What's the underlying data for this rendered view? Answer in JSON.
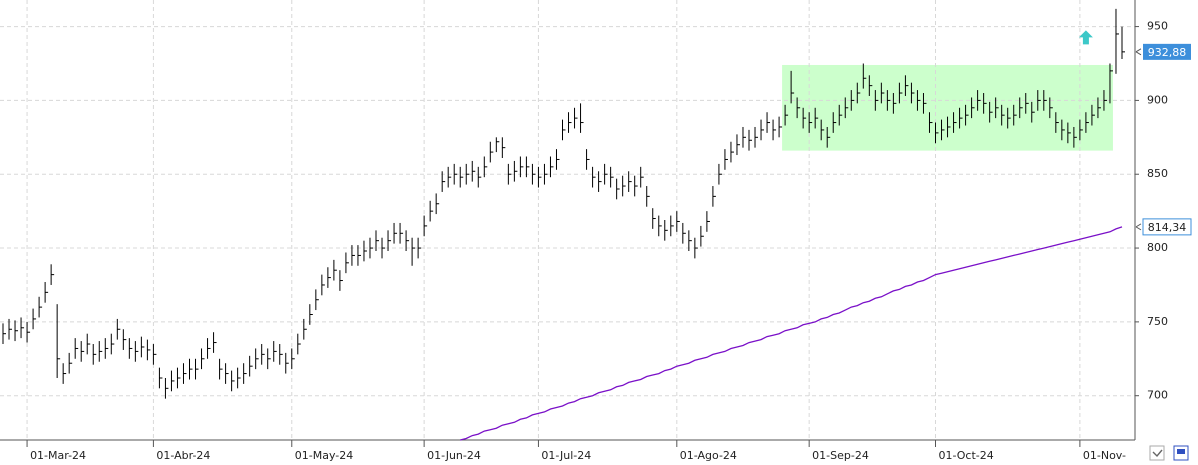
{
  "chart_data": {
    "type": "ohlc",
    "categories": [
      null,
      null,
      null,
      null,
      "01-Mar-24",
      null,
      null,
      null,
      null,
      null,
      null,
      null,
      null,
      null,
      null,
      null,
      null,
      null,
      null,
      null,
      null,
      null,
      null,
      null,
      null,
      "01-Abr-24",
      null,
      null,
      null,
      null,
      null,
      null,
      null,
      null,
      null,
      null,
      null,
      null,
      null,
      null,
      null,
      null,
      null,
      null,
      null,
      null,
      null,
      null,
      "01-May-24",
      null,
      null,
      null,
      null,
      null,
      null,
      null,
      null,
      null,
      null,
      null,
      null,
      null,
      null,
      null,
      null,
      null,
      null,
      null,
      null,
      null,
      "01-Jun-24",
      null,
      null,
      null,
      null,
      null,
      null,
      null,
      null,
      null,
      null,
      null,
      null,
      null,
      null,
      null,
      null,
      null,
      null,
      "01-Jul-24",
      null,
      null,
      null,
      null,
      null,
      null,
      null,
      null,
      null,
      null,
      null,
      null,
      null,
      null,
      null,
      null,
      null,
      null,
      null,
      null,
      null,
      null,
      "01-Ago-24",
      null,
      null,
      null,
      null,
      null,
      null,
      null,
      null,
      null,
      null,
      null,
      null,
      null,
      null,
      null,
      null,
      null,
      null,
      null,
      null,
      null,
      "01-Sep-24",
      null,
      null,
      null,
      null,
      null,
      null,
      null,
      null,
      null,
      null,
      null,
      null,
      null,
      null,
      null,
      null,
      null,
      null,
      null,
      null,
      "01-Oct-24",
      null,
      null,
      null,
      null,
      null,
      null,
      null,
      null,
      null,
      null,
      null,
      null,
      null,
      null,
      null,
      null,
      null,
      null,
      null,
      null,
      null,
      null,
      null,
      "01-Nov-",
      null,
      null,
      null,
      null,
      null,
      null
    ],
    "price": {
      "color": "#000000",
      "label_color": "#3d8fdb",
      "last_label": "932,88",
      "high": [
        749,
        752,
        751,
        753,
        750,
        759,
        767,
        777,
        789,
        762,
        722,
        729,
        739,
        737,
        742,
        735,
        737,
        739,
        742,
        752,
        745,
        739,
        737,
        740,
        738,
        735,
        719,
        712,
        717,
        719,
        722,
        725,
        725,
        732,
        739,
        743,
        725,
        722,
        717,
        719,
        722,
        727,
        732,
        735,
        732,
        737,
        735,
        729,
        732,
        742,
        752,
        762,
        772,
        782,
        787,
        792,
        785,
        797,
        802,
        802,
        805,
        807,
        812,
        807,
        812,
        817,
        817,
        812,
        807,
        807,
        822,
        832,
        837,
        852,
        855,
        857,
        855,
        857,
        859,
        855,
        862,
        872,
        875,
        875,
        857,
        859,
        862,
        862,
        857,
        855,
        857,
        862,
        867,
        887,
        892,
        895,
        898,
        867,
        855,
        852,
        857,
        855,
        847,
        849,
        852,
        849,
        855,
        842,
        827,
        822,
        819,
        822,
        825,
        817,
        812,
        807,
        815,
        825,
        842,
        857,
        867,
        872,
        877,
        882,
        880,
        882,
        887,
        892,
        887,
        889,
        897,
        920,
        902,
        895,
        892,
        895,
        887,
        882,
        892,
        897,
        902,
        907,
        912,
        925,
        917,
        907,
        912,
        907,
        905,
        912,
        917,
        912,
        907,
        905,
        892,
        885,
        887,
        889,
        892,
        895,
        897,
        902,
        907,
        905,
        899,
        902,
        897,
        895,
        897,
        902,
        905,
        899,
        907,
        907,
        902,
        892,
        887,
        885,
        882,
        887,
        892,
        897,
        902,
        907,
        925,
        962,
        950
      ],
      "low": [
        735,
        738,
        737,
        739,
        736,
        745,
        753,
        763,
        775,
        712,
        708,
        715,
        725,
        723,
        728,
        721,
        723,
        725,
        728,
        738,
        731,
        725,
        723,
        726,
        724,
        721,
        705,
        698,
        703,
        705,
        708,
        711,
        711,
        718,
        725,
        729,
        711,
        708,
        703,
        705,
        708,
        713,
        718,
        721,
        718,
        723,
        721,
        715,
        718,
        728,
        738,
        748,
        758,
        768,
        773,
        778,
        771,
        783,
        788,
        788,
        791,
        793,
        798,
        793,
        798,
        803,
        803,
        798,
        788,
        793,
        808,
        818,
        823,
        838,
        841,
        843,
        841,
        843,
        845,
        841,
        848,
        858,
        865,
        861,
        843,
        845,
        848,
        848,
        843,
        841,
        843,
        848,
        853,
        873,
        878,
        881,
        878,
        853,
        841,
        838,
        843,
        841,
        833,
        835,
        838,
        835,
        841,
        828,
        813,
        808,
        805,
        808,
        811,
        803,
        798,
        793,
        801,
        811,
        828,
        843,
        853,
        858,
        863,
        868,
        866,
        868,
        873,
        878,
        873,
        875,
        883,
        898,
        888,
        881,
        878,
        881,
        873,
        868,
        878,
        883,
        888,
        893,
        898,
        908,
        903,
        893,
        898,
        893,
        891,
        898,
        903,
        898,
        893,
        891,
        878,
        871,
        873,
        875,
        878,
        881,
        883,
        888,
        893,
        891,
        885,
        888,
        883,
        881,
        883,
        888,
        891,
        885,
        893,
        893,
        888,
        878,
        873,
        871,
        868,
        873,
        878,
        883,
        888,
        893,
        898,
        918,
        928
      ],
      "close": [
        742,
        745,
        744,
        746,
        743,
        752,
        760,
        770,
        782,
        725,
        715,
        722,
        732,
        730,
        735,
        728,
        730,
        732,
        735,
        745,
        738,
        732,
        730,
        733,
        731,
        728,
        712,
        705,
        710,
        712,
        715,
        718,
        718,
        725,
        732,
        736,
        718,
        715,
        710,
        712,
        715,
        720,
        725,
        728,
        725,
        730,
        728,
        722,
        725,
        735,
        745,
        755,
        765,
        775,
        780,
        785,
        778,
        790,
        795,
        795,
        798,
        800,
        805,
        800,
        805,
        810,
        810,
        805,
        800,
        800,
        815,
        825,
        830,
        845,
        848,
        850,
        848,
        850,
        852,
        848,
        855,
        865,
        872,
        868,
        850,
        852,
        855,
        855,
        850,
        848,
        850,
        855,
        860,
        880,
        885,
        888,
        885,
        860,
        848,
        845,
        850,
        848,
        840,
        842,
        845,
        842,
        848,
        835,
        820,
        815,
        812,
        815,
        818,
        810,
        805,
        800,
        808,
        818,
        835,
        850,
        860,
        865,
        870,
        875,
        873,
        875,
        880,
        885,
        880,
        882,
        890,
        905,
        895,
        888,
        885,
        888,
        880,
        875,
        885,
        890,
        895,
        900,
        905,
        915,
        910,
        900,
        905,
        900,
        898,
        905,
        910,
        905,
        900,
        898,
        885,
        878,
        880,
        882,
        885,
        888,
        890,
        895,
        900,
        898,
        892,
        895,
        890,
        888,
        890,
        895,
        898,
        892,
        900,
        900,
        895,
        885,
        880,
        878,
        875,
        880,
        885,
        890,
        895,
        900,
        920,
        945,
        932.88
      ]
    },
    "moving_average": {
      "color": "#7a10c8",
      "last_label": "814,34",
      "values": [
        null,
        null,
        null,
        null,
        null,
        null,
        null,
        null,
        null,
        null,
        null,
        null,
        null,
        null,
        null,
        null,
        null,
        null,
        null,
        null,
        null,
        null,
        null,
        null,
        null,
        null,
        null,
        null,
        null,
        null,
        null,
        null,
        null,
        null,
        null,
        null,
        null,
        null,
        null,
        null,
        null,
        null,
        null,
        null,
        null,
        null,
        null,
        null,
        null,
        null,
        null,
        null,
        null,
        null,
        null,
        null,
        null,
        null,
        null,
        null,
        null,
        null,
        null,
        null,
        null,
        null,
        null,
        null,
        null,
        null,
        null,
        null,
        null,
        null,
        null,
        null,
        670,
        671,
        673,
        674,
        676,
        677,
        678,
        680,
        681,
        682,
        684,
        685,
        687,
        688,
        689,
        691,
        692,
        693,
        695,
        696,
        698,
        699,
        700,
        702,
        703,
        704,
        706,
        707,
        709,
        710,
        711,
        713,
        714,
        715,
        717,
        718,
        720,
        721,
        722,
        724,
        725,
        726,
        728,
        729,
        730,
        732,
        733,
        734,
        736,
        737,
        738,
        740,
        741,
        742,
        744,
        745,
        746,
        748,
        749,
        750,
        752,
        753,
        755,
        756,
        758,
        760,
        761,
        763,
        764,
        766,
        767,
        769,
        771,
        772,
        774,
        775,
        777,
        778,
        780,
        782,
        783,
        784,
        785,
        786,
        787,
        788,
        789,
        790,
        791,
        792,
        793,
        794,
        795,
        796,
        797,
        798,
        799,
        800,
        801,
        802,
        803,
        804,
        805,
        806,
        807,
        808,
        809,
        810,
        811,
        813,
        814.34
      ]
    },
    "highlight": {
      "start_index": 130,
      "end_index": 184,
      "low": 866,
      "high": 924,
      "color": "#ccffcc"
    },
    "signal": {
      "index": 180,
      "value": 942,
      "color": "#3cc8c8"
    },
    "ylim": [
      670,
      968
    ],
    "yticks": [
      700,
      750,
      800,
      850,
      900,
      950
    ],
    "grid": true
  }
}
